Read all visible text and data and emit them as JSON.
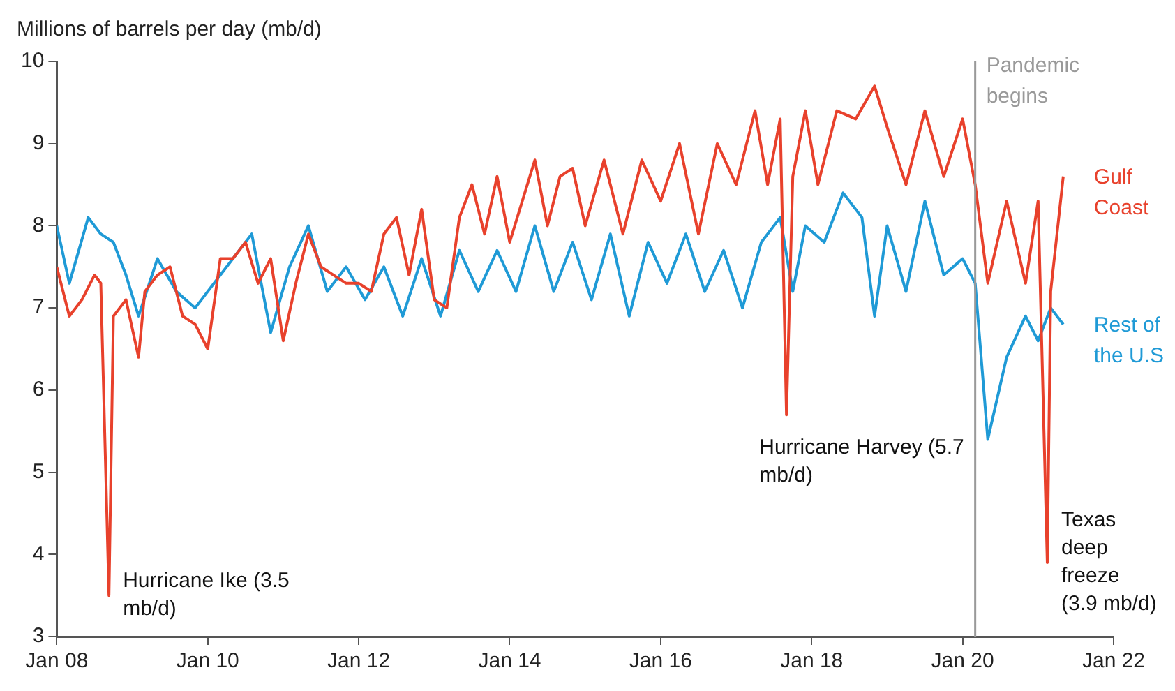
{
  "chart_data": {
    "type": "line",
    "ylabel": "Millions of barrels per day (mb/d)",
    "xlim": [
      "2008-01",
      "2022-01"
    ],
    "xticks": [
      {
        "value": "2008-01",
        "label": "Jan 08"
      },
      {
        "value": "2010-01",
        "label": "Jan 10"
      },
      {
        "value": "2012-01",
        "label": "Jan 12"
      },
      {
        "value": "2014-01",
        "label": "Jan 14"
      },
      {
        "value": "2016-01",
        "label": "Jan 16"
      },
      {
        "value": "2018-01",
        "label": "Jan 18"
      },
      {
        "value": "2020-01",
        "label": "Jan 20"
      },
      {
        "value": "2022-01",
        "label": "Jan 22"
      }
    ],
    "ylim": [
      3,
      10
    ],
    "yticks": [
      3,
      4,
      5,
      6,
      7,
      8,
      9,
      10
    ],
    "legend": false,
    "marker": "none",
    "line_style": "solid",
    "series": [
      {
        "name": "Gulf Coast",
        "color": "#e8412c",
        "x": [
          "2008-01",
          "2008-03",
          "2008-05",
          "2008-07",
          "2008-08",
          "2008-09-10",
          "2008-10",
          "2008-12",
          "2009-02",
          "2009-03",
          "2009-05",
          "2009-07",
          "2009-09",
          "2009-11",
          "2010-01",
          "2010-03",
          "2010-05",
          "2010-07",
          "2010-09",
          "2010-11",
          "2011-01",
          "2011-03",
          "2011-05",
          "2011-07",
          "2011-09",
          "2011-11",
          "2012-01",
          "2012-03",
          "2012-05",
          "2012-07",
          "2012-09",
          "2012-11",
          "2013-01",
          "2013-03",
          "2013-05",
          "2013-07",
          "2013-09",
          "2013-11",
          "2014-01",
          "2014-03",
          "2014-05",
          "2014-07",
          "2014-09",
          "2014-11",
          "2015-01",
          "2015-04",
          "2015-07",
          "2015-10",
          "2016-01",
          "2016-04",
          "2016-07",
          "2016-10",
          "2017-01",
          "2017-04",
          "2017-06",
          "2017-08",
          "2017-09-01",
          "2017-10",
          "2017-12",
          "2018-02",
          "2018-05",
          "2018-08",
          "2018-11",
          "2019-01",
          "2019-04",
          "2019-07",
          "2019-10",
          "2020-01",
          "2020-03",
          "2020-05",
          "2020-08",
          "2020-11",
          "2021-01",
          "2021-02-15",
          "2021-03",
          "2021-05"
        ],
        "values": [
          7.5,
          6.9,
          7.1,
          7.4,
          7.3,
          3.5,
          6.9,
          7.1,
          6.4,
          7.2,
          7.4,
          7.5,
          6.9,
          6.8,
          6.5,
          7.6,
          7.6,
          7.8,
          7.3,
          7.6,
          6.6,
          7.3,
          7.9,
          7.5,
          7.4,
          7.3,
          7.3,
          7.2,
          7.9,
          8.1,
          7.4,
          8.2,
          7.1,
          7.0,
          8.1,
          8.5,
          7.9,
          8.6,
          7.8,
          8.3,
          8.8,
          8.0,
          8.6,
          8.7,
          8.0,
          8.8,
          7.9,
          8.8,
          8.3,
          9.0,
          7.9,
          9.0,
          8.5,
          9.4,
          8.5,
          9.3,
          5.7,
          8.6,
          9.4,
          8.5,
          9.4,
          9.3,
          9.7,
          9.2,
          8.5,
          9.4,
          8.6,
          9.3,
          8.5,
          7.3,
          8.3,
          7.3,
          8.3,
          3.9,
          7.2,
          8.6
        ]
      },
      {
        "name": "Rest of the U.S",
        "color": "#1f9ad6",
        "x": [
          "2008-01",
          "2008-03",
          "2008-06",
          "2008-08",
          "2008-10",
          "2008-12",
          "2009-02",
          "2009-05",
          "2009-08",
          "2009-11",
          "2010-02",
          "2010-05",
          "2010-08",
          "2010-11",
          "2011-02",
          "2011-05",
          "2011-08",
          "2011-11",
          "2012-02",
          "2012-05",
          "2012-08",
          "2012-11",
          "2013-02",
          "2013-05",
          "2013-08",
          "2013-11",
          "2014-02",
          "2014-05",
          "2014-08",
          "2014-11",
          "2015-02",
          "2015-05",
          "2015-08",
          "2015-11",
          "2016-02",
          "2016-05",
          "2016-08",
          "2016-11",
          "2017-02",
          "2017-05",
          "2017-08",
          "2017-10",
          "2017-12",
          "2018-03",
          "2018-06",
          "2018-09",
          "2018-11",
          "2019-01",
          "2019-04",
          "2019-07",
          "2019-10",
          "2020-01",
          "2020-03",
          "2020-05",
          "2020-08",
          "2020-11",
          "2021-01",
          "2021-03",
          "2021-05"
        ],
        "values": [
          8.0,
          7.3,
          8.1,
          7.9,
          7.8,
          7.4,
          6.9,
          7.6,
          7.2,
          7.0,
          7.3,
          7.6,
          7.9,
          6.7,
          7.5,
          8.0,
          7.2,
          7.5,
          7.1,
          7.5,
          6.9,
          7.6,
          6.9,
          7.7,
          7.2,
          7.7,
          7.2,
          8.0,
          7.2,
          7.8,
          7.1,
          7.9,
          6.9,
          7.8,
          7.3,
          7.9,
          7.2,
          7.7,
          7.0,
          7.8,
          8.1,
          7.2,
          8.0,
          7.8,
          8.4,
          8.1,
          6.9,
          8.0,
          7.2,
          8.3,
          7.4,
          7.6,
          7.3,
          5.4,
          6.4,
          6.9,
          6.6,
          7.0,
          6.8
        ]
      }
    ],
    "ref_lines": [
      {
        "axis": "x",
        "value": "2020-03",
        "label": "Pandemic begins",
        "color": "#999999"
      }
    ],
    "annotations": [
      {
        "text": "Hurricane Ike (3.5 mb/d)",
        "x": "2008-09-10",
        "y": 3.5
      },
      {
        "text": "Hurricane Harvey (5.7 mb/d)",
        "x": "2017-09-01",
        "y": 5.7
      },
      {
        "text": "Texas deep freeze (3.9 mb/d)",
        "x": "2021-02-15",
        "y": 3.9
      }
    ]
  }
}
